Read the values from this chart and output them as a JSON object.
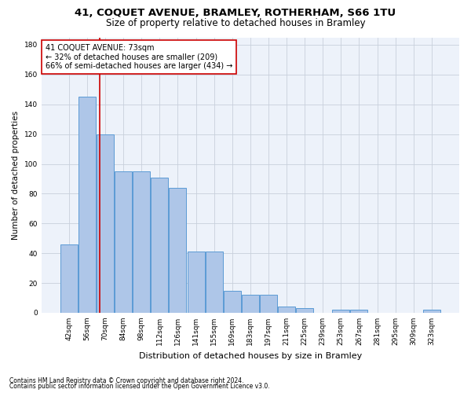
{
  "title": "41, COQUET AVENUE, BRAMLEY, ROTHERHAM, S66 1TU",
  "subtitle": "Size of property relative to detached houses in Bramley",
  "xlabel": "Distribution of detached houses by size in Bramley",
  "ylabel": "Number of detached properties",
  "footnote1": "Contains HM Land Registry data © Crown copyright and database right 2024.",
  "footnote2": "Contains public sector information licensed under the Open Government Licence v3.0.",
  "bar_labels": [
    "42sqm",
    "56sqm",
    "70sqm",
    "84sqm",
    "98sqm",
    "112sqm",
    "126sqm",
    "141sqm",
    "155sqm",
    "169sqm",
    "183sqm",
    "197sqm",
    "211sqm",
    "225sqm",
    "239sqm",
    "253sqm",
    "267sqm",
    "281sqm",
    "295sqm",
    "309sqm",
    "323sqm"
  ],
  "bar_values": [
    46,
    145,
    120,
    95,
    95,
    91,
    84,
    41,
    41,
    15,
    12,
    12,
    4,
    3,
    0,
    2,
    2,
    0,
    0,
    0,
    2
  ],
  "bar_color": "#aec6e8",
  "bar_edge_color": "#5b9bd5",
  "subject_label": "41 COQUET AVENUE: 73sqm",
  "annotation_line1": "← 32% of detached houses are smaller (209)",
  "annotation_line2": "66% of semi-detached houses are larger (434) →",
  "annotation_box_color": "#ffffff",
  "annotation_box_edge": "#cc0000",
  "vline_color": "#cc0000",
  "ylim": [
    0,
    185
  ],
  "yticks": [
    0,
    20,
    40,
    60,
    80,
    100,
    120,
    140,
    160,
    180
  ],
  "bg_color": "#edf2fa",
  "grid_color": "#c8d0dc",
  "title_fontsize": 9.5,
  "subtitle_fontsize": 8.5,
  "ylabel_fontsize": 7.5,
  "xlabel_fontsize": 8,
  "tick_fontsize": 6.5,
  "annot_fontsize": 7,
  "footnote_fontsize": 5.5
}
